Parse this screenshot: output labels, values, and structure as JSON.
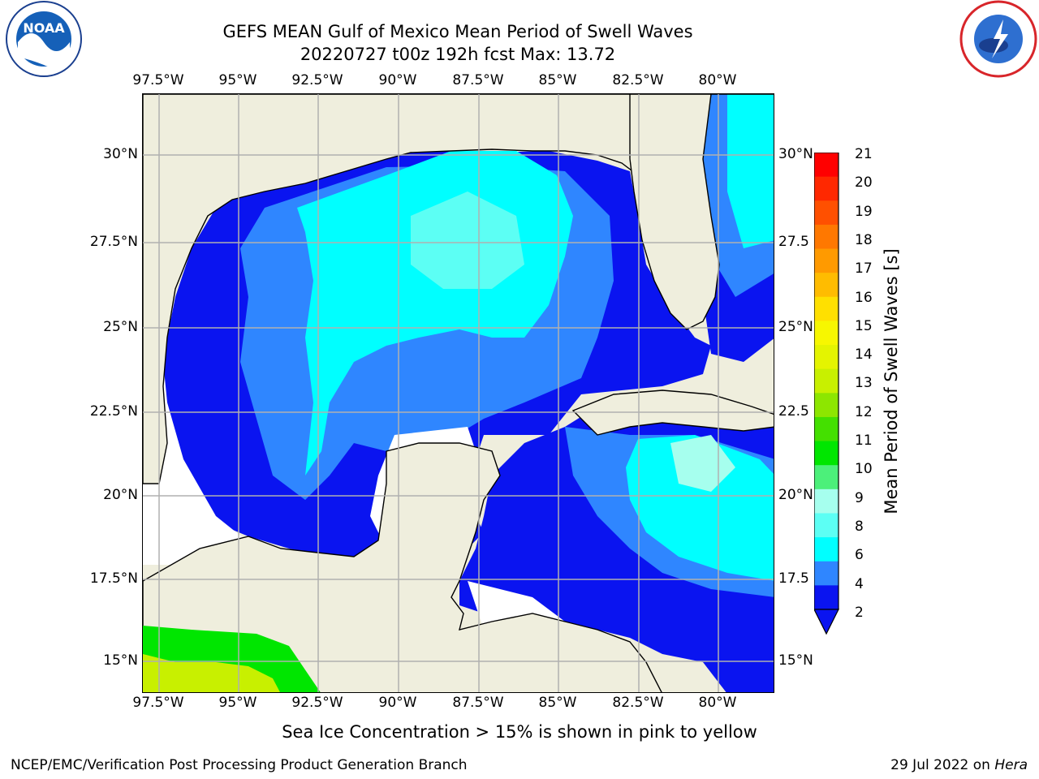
{
  "header": {
    "title_line1": "GEFS MEAN Gulf of Mexico Mean Period of Swell Waves",
    "title_line2": "20220727 t00z 192h fcst   Max: 13.72"
  },
  "logos": {
    "left": "noaa-logo-icon",
    "right": "nws-logo-icon"
  },
  "axes": {
    "lon_labels": [
      "97.5°W",
      "95°W",
      "92.5°W",
      "90°W",
      "87.5°W",
      "85°W",
      "82.5°W",
      "80°W"
    ],
    "lat_labels_left": [
      "30°N",
      "27.5°N",
      "25°N",
      "22.5°N",
      "20°N",
      "17.5°N",
      "15°N"
    ],
    "lat_labels_right": [
      "30°N",
      "27.5",
      "25°N",
      "22.5",
      "20°N",
      "17.5",
      "15°N"
    ]
  },
  "colorbar": {
    "label": "Mean Period of Swell Waves [s]",
    "ticks": [
      "21",
      "20",
      "19",
      "18",
      "17",
      "16",
      "15",
      "14",
      "13",
      "12",
      "11",
      "10",
      "9",
      "8",
      "6",
      "4",
      "2"
    ],
    "colors": [
      "#ff0000",
      "#ff2800",
      "#ff5000",
      "#ff7800",
      "#ff9a00",
      "#ffbc00",
      "#ffe000",
      "#f7f700",
      "#e4f400",
      "#c8f000",
      "#8de600",
      "#44e000",
      "#00e600",
      "#4cf07a",
      "#a6ffee",
      "#5cfff4",
      "#00ffff",
      "#2f86ff",
      "#0a14f0"
    ]
  },
  "map_colors": {
    "land": "#efeedd",
    "deep_blue": "#0a14f0",
    "mid_blue": "#2f86ff",
    "cyan": "#00ffff",
    "light_cyan": "#5cfff4",
    "pale_cyan": "#a6ffee",
    "no_data": "#ffffff",
    "green": "#00e600",
    "yellow_green": "#c8f000"
  },
  "footer": {
    "note": "Sea Ice Concentration > 15% is shown in pink to yellow",
    "left": "NCEP/EMC/Verification Post Processing Product Generation Branch",
    "right_date": "29 Jul 2022 on",
    "right_host": "Hera"
  }
}
